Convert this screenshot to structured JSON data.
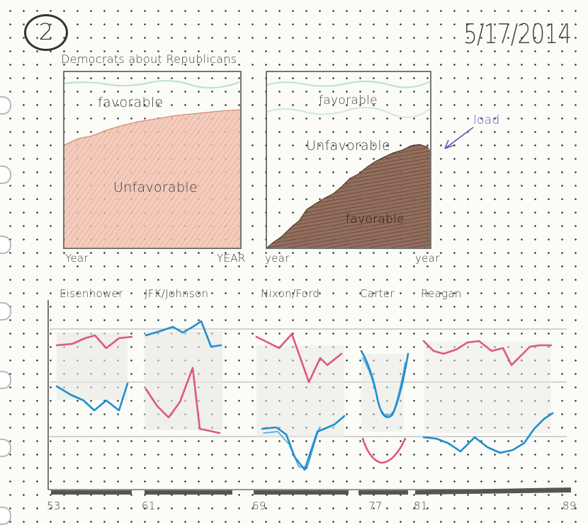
{
  "page_number": "2",
  "date": "5/17/2014",
  "title": "Democrats about Republicans",
  "panel_left": {
    "favorable_label": "favorable",
    "unfavorable_label": "Unfavorable",
    "x_start_label": "Year",
    "x_end_label": "YEAR"
  },
  "panel_right": {
    "favorable_label": "favorable",
    "unfavorable_label": "Unfavorable",
    "favorable_bottom_label": "favorable",
    "x_start_label": "year",
    "x_end_label": "year",
    "annotation_label": "load"
  },
  "presidents": [
    "Eisenhower",
    "JFK/Johnson",
    "Nixon/Ford",
    "Carter",
    "Reagan"
  ],
  "year_ticks": [
    "53",
    "61",
    "69",
    "77",
    "81",
    "89"
  ],
  "colors": {
    "unfavorable_fill": "#e9a890",
    "favorable_dark": "#6e4a3a",
    "series_pink": "#e0567f",
    "series_blue": "#1e8fcf",
    "annotation": "#5b55c0",
    "ink": "#3a3a3a"
  }
}
